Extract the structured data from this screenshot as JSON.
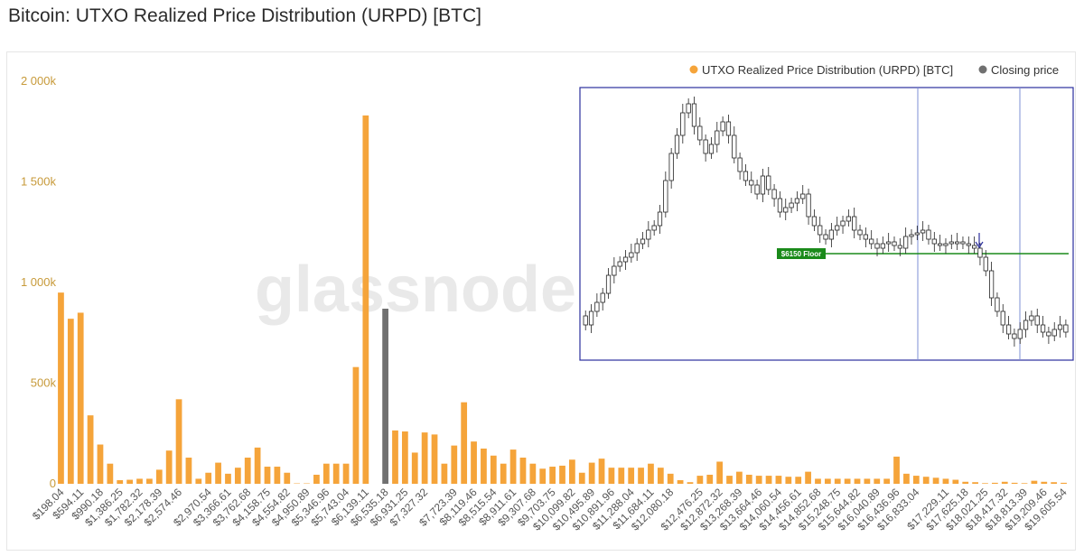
{
  "page": {
    "title": "Bitcoin: UTXO Realized Price Distribution (URPD) [BTC]"
  },
  "colors": {
    "urpd": "#f5a43a",
    "closing": "#707070",
    "axis_text": "#c79a3a",
    "inset_border": "#2b2f9e",
    "floor": "#1a8a1a"
  },
  "watermark": "glassnode",
  "legend": [
    {
      "label": "UTXO Realized Price Distribution (URPD) [BTC]",
      "color": "#f5a43a"
    },
    {
      "label": "Closing price",
      "color": "#707070"
    }
  ],
  "chart_data": {
    "type": "bar",
    "title": "Bitcoin: UTXO Realized Price Distribution (URPD) [BTC]",
    "ylim": [
      0,
      2000000
    ],
    "yticks": [
      {
        "value": 0,
        "label": "0"
      },
      {
        "value": 500000,
        "label": "500k"
      },
      {
        "value": 1000000,
        "label": "1 000k"
      },
      {
        "value": 1500000,
        "label": "1 500k"
      },
      {
        "value": 2000000,
        "label": "2 000k"
      }
    ],
    "xtick_labels": [
      "$198.04",
      "$594.11",
      "$990.18",
      "$1,386.25",
      "$1,782.32",
      "$2,178.39",
      "$2,574.46",
      "$2,970.54",
      "$3,366.61",
      "$3,762.68",
      "$4,158.75",
      "$4,554.82",
      "$4,950.89",
      "$5,346.96",
      "$5,743.04",
      "$6,139.11",
      "$6,535.18",
      "$6,931.25",
      "$7,327.32",
      "$7,723.39",
      "$8,119.46",
      "$8,515.54",
      "$8,911.61",
      "$9,307.68",
      "$9,703.75",
      "$10,099.82",
      "$10,495.89",
      "$10,891.96",
      "$11,288.04",
      "$11,684.11",
      "$12,080.18",
      "$12,476.25",
      "$12,872.32",
      "$13,268.39",
      "$13,664.46",
      "$14,060.54",
      "$14,456.61",
      "$14,852.68",
      "$15,248.75",
      "$15,644.82",
      "$16,040.89",
      "$16,436.96",
      "$16,833.04",
      "$17,229.11",
      "$17,625.18",
      "$18,021.25",
      "$18,417.32",
      "$18,813.39",
      "$19,209.46",
      "$19,605.54"
    ],
    "closing_index": 33,
    "values": [
      950000,
      820000,
      850000,
      340000,
      195000,
      100000,
      18000,
      20000,
      25000,
      25000,
      70000,
      165000,
      420000,
      130000,
      25000,
      55000,
      105000,
      50000,
      80000,
      130000,
      180000,
      85000,
      85000,
      55000,
      2000,
      2000,
      45000,
      100000,
      100000,
      100000,
      580000,
      1830000,
      0,
      870000,
      265000,
      260000,
      155000,
      255000,
      245000,
      100000,
      190000,
      405000,
      210000,
      175000,
      140000,
      100000,
      170000,
      130000,
      100000,
      75000,
      85000,
      90000,
      120000,
      55000,
      105000,
      125000,
      80000,
      80000,
      80000,
      80000,
      100000,
      80000,
      50000,
      18000,
      8000,
      40000,
      45000,
      110000,
      40000,
      60000,
      45000,
      40000,
      40000,
      40000,
      35000,
      35000,
      60000,
      25000,
      25000,
      25000,
      25000,
      25000,
      25000,
      25000,
      25000,
      135000,
      50000,
      40000,
      35000,
      30000,
      25000,
      20000,
      10000,
      8000,
      3000,
      5000,
      10000,
      5000,
      3000,
      15000,
      10000,
      8000,
      5000
    ]
  },
  "inset": {
    "floor_label": "$6150 Floor"
  }
}
